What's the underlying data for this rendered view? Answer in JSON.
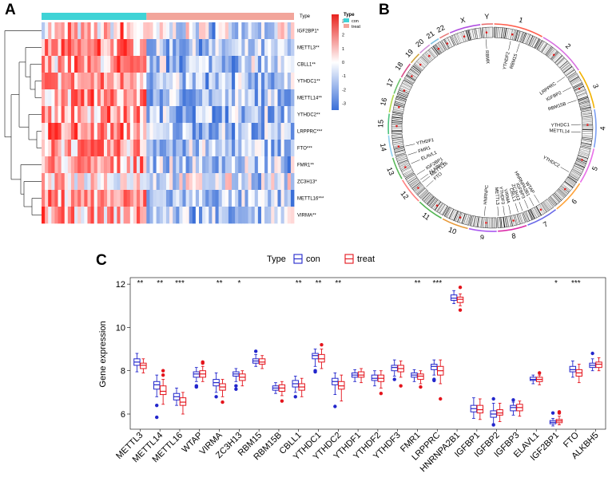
{
  "panels": {
    "a": {
      "letter": "A"
    },
    "b": {
      "letter": "B"
    },
    "c": {
      "letter": "C"
    }
  },
  "heatmap": {
    "type_header": "Type",
    "legend_title": "Type",
    "legend_items": [
      {
        "label": "con",
        "color": "#3fd3d6"
      },
      {
        "label": "treat",
        "color": "#f2a59b"
      }
    ],
    "scale_ticks": [
      "3",
      "2",
      "1",
      "0",
      "-1",
      "-2",
      "-3"
    ],
    "colors": {
      "high": "#e8231e",
      "mid": "#ffffff",
      "low": "#3a6fd8"
    },
    "rows": [
      "IGF2BP1*",
      "METTL3**",
      "CBLL1**",
      "YTHDC1**",
      "METTL14**",
      "YTHDC2**",
      "LRPPRC***",
      "FTO***",
      "FMR1**",
      "ZC3H13*",
      "METTL16***",
      "VIRMA**"
    ],
    "row_bias": [
      0.2,
      0.6,
      0.45,
      0.55,
      0.55,
      0.55,
      0.55,
      0.5,
      0.45,
      0.2,
      0.55,
      0.45
    ],
    "n_con": 32,
    "n_treat": 45
  },
  "circos": {
    "chromosomes": [
      "1",
      "2",
      "3",
      "4",
      "5",
      "6",
      "7",
      "8",
      "9",
      "10",
      "11",
      "12",
      "13",
      "14",
      "15",
      "16",
      "17",
      "18",
      "19",
      "20",
      "21",
      "22",
      "X",
      "Y"
    ],
    "gene_labels": [
      "YTHDF2",
      "RBM15",
      "LRPPRC",
      "IGFBP2",
      "RBM15B",
      "YTHDC1",
      "METTL14",
      "YTHDC2",
      "WTAP",
      "HNRNPA2B1",
      "IGFBP3",
      "ZC3H13",
      "CBLL1",
      "VIRMA",
      "YTHDF3",
      "METTL3",
      "HNRNPC",
      "FTO",
      "METTL16",
      "ALKBH5",
      "IGF2BP1",
      "ELAVL1",
      "YTHDF1",
      "FMR1",
      "RBMX"
    ]
  },
  "chart_data": {
    "type": "box",
    "title": "",
    "xlabel": "",
    "ylabel": "Gene expression",
    "ylim": [
      5.3,
      12.3
    ],
    "yticks": [
      "6",
      "8",
      "10",
      "12"
    ],
    "legend_title": "Type",
    "series": [
      {
        "name": "con",
        "color": "#2226cc"
      },
      {
        "name": "treat",
        "color": "#e4141c"
      }
    ],
    "categories": [
      "METTL3",
      "METTL14",
      "METTL16",
      "WTAP",
      "VIRMA",
      "ZC3H13",
      "RBM15",
      "RBM15B",
      "CBLL1",
      "YTHDC1",
      "YTHDC2",
      "YTHDF1",
      "YTHDF2",
      "YTHDF3",
      "FMR1",
      "LRPPRC",
      "HNRNPA2B1",
      "IGFBP1",
      "IGFBP2",
      "IGFBP3",
      "ELAVL1",
      "IGF2BP1",
      "FTO",
      "ALKBH5"
    ],
    "significance": [
      "**",
      "**",
      "***",
      "",
      "**",
      "*",
      "",
      "",
      "**",
      "**",
      "**",
      "",
      "",
      "",
      "**",
      "***",
      "",
      "",
      "",
      "",
      "",
      "*",
      "***",
      ""
    ],
    "con": [
      {
        "q1": 8.25,
        "med": 8.4,
        "q3": 8.55,
        "lo": 7.95,
        "hi": 8.8,
        "out": []
      },
      {
        "q1": 7.15,
        "med": 7.35,
        "q3": 7.5,
        "lo": 6.8,
        "hi": 7.8,
        "out": [
          6.4,
          5.85
        ]
      },
      {
        "q1": 6.65,
        "med": 6.8,
        "q3": 6.95,
        "lo": 6.4,
        "hi": 7.2,
        "out": []
      },
      {
        "q1": 7.7,
        "med": 7.85,
        "q3": 7.95,
        "lo": 7.5,
        "hi": 8.15,
        "out": [
          7.3,
          7.25
        ]
      },
      {
        "q1": 7.3,
        "med": 7.45,
        "q3": 7.6,
        "lo": 7.0,
        "hi": 7.9,
        "out": [
          6.8
        ]
      },
      {
        "q1": 7.75,
        "med": 7.85,
        "q3": 7.95,
        "lo": 7.5,
        "hi": 8.1,
        "out": [
          7.3,
          7.15
        ]
      },
      {
        "q1": 8.35,
        "med": 8.45,
        "q3": 8.55,
        "lo": 8.2,
        "hi": 8.75,
        "out": [
          8.9
        ]
      },
      {
        "q1": 7.1,
        "med": 7.2,
        "q3": 7.3,
        "lo": 6.95,
        "hi": 7.45,
        "out": []
      },
      {
        "q1": 7.25,
        "med": 7.4,
        "q3": 7.55,
        "lo": 7.0,
        "hi": 7.75,
        "out": [
          6.8
        ]
      },
      {
        "q1": 8.55,
        "med": 8.7,
        "q3": 8.8,
        "lo": 8.2,
        "hi": 9.0,
        "out": [
          8.0,
          7.95
        ]
      },
      {
        "q1": 7.35,
        "med": 7.5,
        "q3": 7.65,
        "lo": 6.9,
        "hi": 7.9,
        "out": [
          6.35
        ]
      },
      {
        "q1": 7.7,
        "med": 7.8,
        "q3": 7.9,
        "lo": 7.5,
        "hi": 8.05,
        "out": []
      },
      {
        "q1": 7.55,
        "med": 7.65,
        "q3": 7.8,
        "lo": 7.3,
        "hi": 8.0,
        "out": []
      },
      {
        "q1": 8.0,
        "med": 8.15,
        "q3": 8.25,
        "lo": 7.75,
        "hi": 8.5,
        "out": [
          7.6
        ]
      },
      {
        "q1": 7.7,
        "med": 7.8,
        "q3": 7.9,
        "lo": 7.5,
        "hi": 8.05,
        "out": []
      },
      {
        "q1": 8.05,
        "med": 8.2,
        "q3": 8.3,
        "lo": 7.8,
        "hi": 8.5,
        "out": [
          7.6,
          7.55
        ]
      },
      {
        "q1": 11.25,
        "med": 11.35,
        "q3": 11.5,
        "lo": 11.1,
        "hi": 11.7,
        "out": []
      },
      {
        "q1": 6.1,
        "med": 6.25,
        "q3": 6.4,
        "lo": 5.8,
        "hi": 6.75,
        "out": []
      },
      {
        "q1": 5.85,
        "med": 6.0,
        "q3": 6.15,
        "lo": 5.55,
        "hi": 6.5,
        "out": [
          6.7,
          5.5
        ]
      },
      {
        "q1": 6.15,
        "med": 6.3,
        "q3": 6.4,
        "lo": 5.95,
        "hi": 6.55,
        "out": [
          6.65
        ]
      },
      {
        "q1": 7.55,
        "med": 7.6,
        "q3": 7.7,
        "lo": 7.4,
        "hi": 7.8,
        "out": []
      },
      {
        "q1": 5.55,
        "med": 5.62,
        "q3": 5.7,
        "lo": 5.45,
        "hi": 5.8,
        "out": [
          6.05
        ]
      },
      {
        "q1": 7.95,
        "med": 8.05,
        "q3": 8.2,
        "lo": 7.7,
        "hi": 8.45,
        "out": []
      },
      {
        "q1": 8.15,
        "med": 8.25,
        "q3": 8.35,
        "lo": 8.0,
        "hi": 8.55,
        "out": [
          8.8
        ]
      }
    ],
    "treat": [
      {
        "q1": 8.1,
        "med": 8.25,
        "q3": 8.35,
        "lo": 7.9,
        "hi": 8.55,
        "out": []
      },
      {
        "q1": 6.9,
        "med": 7.05,
        "q3": 7.3,
        "lo": 6.45,
        "hi": 7.6,
        "out": [
          8.0,
          7.8
        ]
      },
      {
        "q1": 6.4,
        "med": 6.55,
        "q3": 6.75,
        "lo": 6.0,
        "hi": 7.0,
        "out": []
      },
      {
        "q1": 7.7,
        "med": 7.85,
        "q3": 8.0,
        "lo": 7.5,
        "hi": 8.2,
        "out": [
          8.35,
          8.4
        ]
      },
      {
        "q1": 7.1,
        "med": 7.25,
        "q3": 7.4,
        "lo": 6.8,
        "hi": 7.6,
        "out": [
          6.55
        ]
      },
      {
        "q1": 7.55,
        "med": 7.7,
        "q3": 7.85,
        "lo": 7.3,
        "hi": 8.0,
        "out": []
      },
      {
        "q1": 8.3,
        "med": 8.4,
        "q3": 8.55,
        "lo": 8.1,
        "hi": 8.7,
        "out": []
      },
      {
        "q1": 7.05,
        "med": 7.2,
        "q3": 7.35,
        "lo": 6.85,
        "hi": 7.5,
        "out": [
          6.6
        ]
      },
      {
        "q1": 7.1,
        "med": 7.25,
        "q3": 7.4,
        "lo": 6.8,
        "hi": 7.65,
        "out": []
      },
      {
        "q1": 8.4,
        "med": 8.55,
        "q3": 8.75,
        "lo": 8.1,
        "hi": 9.0,
        "out": [
          9.2
        ]
      },
      {
        "q1": 7.15,
        "med": 7.3,
        "q3": 7.5,
        "lo": 6.6,
        "hi": 7.8,
        "out": []
      },
      {
        "q1": 7.7,
        "med": 7.8,
        "q3": 7.95,
        "lo": 7.45,
        "hi": 8.1,
        "out": []
      },
      {
        "q1": 7.5,
        "med": 7.65,
        "q3": 7.8,
        "lo": 7.2,
        "hi": 8.0,
        "out": [
          6.95
        ]
      },
      {
        "q1": 7.95,
        "med": 8.1,
        "q3": 8.25,
        "lo": 7.7,
        "hi": 8.45,
        "out": [
          7.3
        ]
      },
      {
        "q1": 7.6,
        "med": 7.75,
        "q3": 7.85,
        "lo": 7.4,
        "hi": 8.0,
        "out": [
          7.25
        ]
      },
      {
        "q1": 7.8,
        "med": 8.0,
        "q3": 8.2,
        "lo": 7.4,
        "hi": 8.5,
        "out": [
          6.7
        ]
      },
      {
        "q1": 11.15,
        "med": 11.3,
        "q3": 11.4,
        "lo": 11.0,
        "hi": 11.55,
        "out": [
          11.85,
          10.8
        ]
      },
      {
        "q1": 6.05,
        "med": 6.2,
        "q3": 6.4,
        "lo": 5.75,
        "hi": 6.7,
        "out": []
      },
      {
        "q1": 5.95,
        "med": 6.05,
        "q3": 6.2,
        "lo": 5.65,
        "hi": 6.5,
        "out": []
      },
      {
        "q1": 6.15,
        "med": 6.3,
        "q3": 6.45,
        "lo": 5.9,
        "hi": 6.6,
        "out": []
      },
      {
        "q1": 7.5,
        "med": 7.6,
        "q3": 7.7,
        "lo": 7.35,
        "hi": 7.8,
        "out": [
          7.9
        ]
      },
      {
        "q1": 5.6,
        "med": 5.68,
        "q3": 5.75,
        "lo": 5.5,
        "hi": 5.9,
        "out": [
          6.05,
          6.1
        ]
      },
      {
        "q1": 7.75,
        "med": 7.9,
        "q3": 8.05,
        "lo": 7.45,
        "hi": 8.3,
        "out": []
      },
      {
        "q1": 8.15,
        "med": 8.3,
        "q3": 8.4,
        "lo": 8.0,
        "hi": 8.6,
        "out": []
      }
    ]
  }
}
